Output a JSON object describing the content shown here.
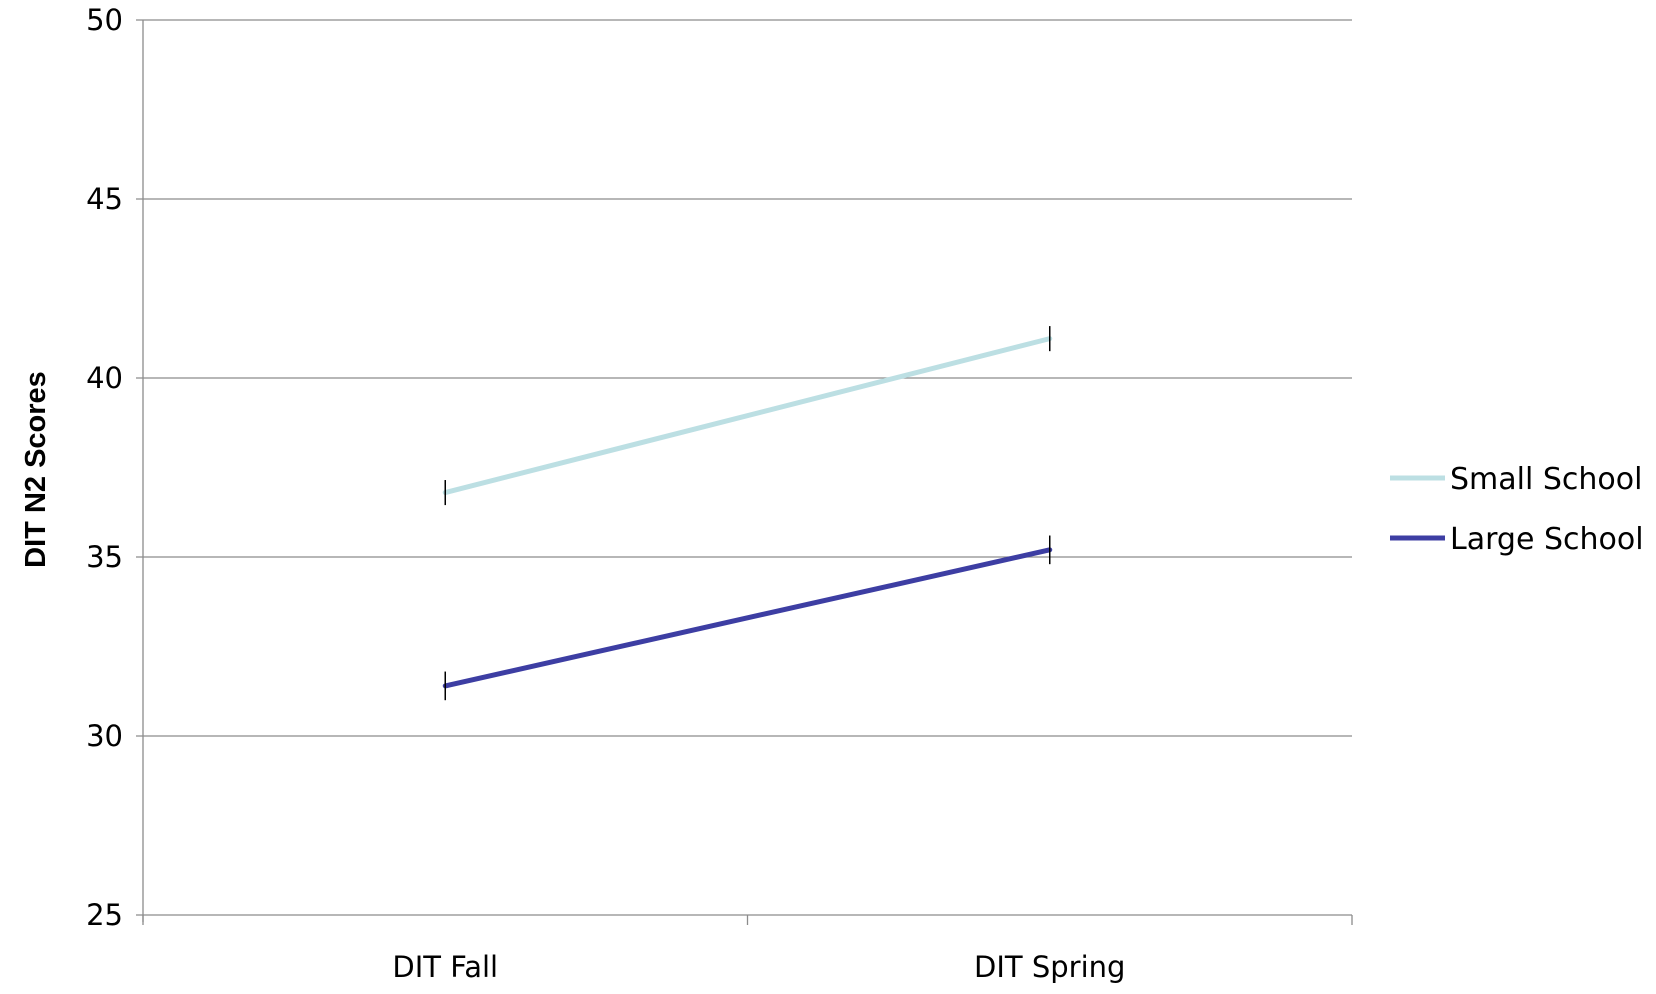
{
  "chart_data": {
    "type": "line",
    "title": "",
    "xlabel": "",
    "ylabel": "DIT N2 Scores",
    "categories": [
      "DIT Fall",
      "DIT Spring"
    ],
    "ylim": [
      25,
      50
    ],
    "yticks": [
      "25",
      "30",
      "35",
      "40",
      "45",
      "50"
    ],
    "grid": "horizontal",
    "legend": "right",
    "error_bars": true,
    "series": [
      {
        "name": "Small School",
        "values": [
          36.8,
          41.1
        ],
        "error": [
          0.35,
          0.35
        ],
        "color": "#bcdfe3"
      },
      {
        "name": "Large School",
        "values": [
          31.4,
          35.2
        ],
        "error": [
          0.4,
          0.4
        ],
        "color": "#3d3ea3"
      }
    ]
  }
}
